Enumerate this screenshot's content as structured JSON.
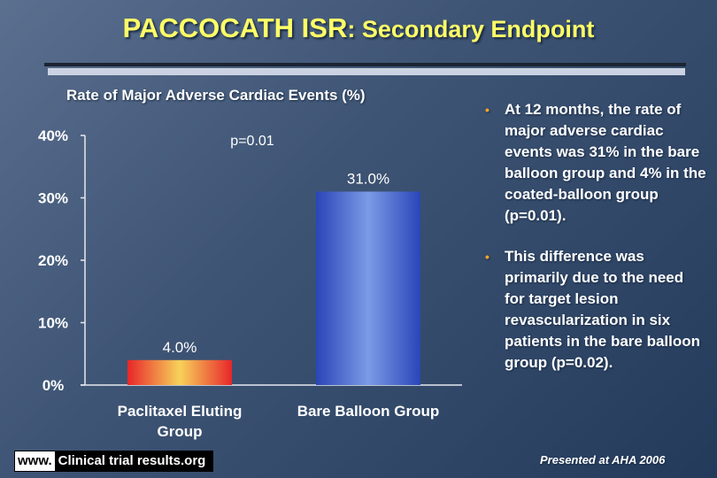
{
  "slide": {
    "title_main": "PACCOCATH ISR",
    "title_sub": ": Secondary Endpoint",
    "chart_title": "Rate of Major Adverse Cardiac Events (%)",
    "bullets": [
      {
        "text": "At 12 months, the rate of major adverse cardiac events was 31% in the bare balloon group and 4% in the coated-balloon group (p=0.01)."
      },
      {
        "text": "This difference was primarily due to the need for target lesion revascularization in six patients in the bare balloon group (p=0.02)."
      }
    ],
    "logo": {
      "www": "www.",
      "site": "Clinical trial results.org"
    },
    "footnote": "Presented at AHA 2006"
  },
  "chart_data": {
    "type": "bar",
    "title": "Rate of Major Adverse Cardiac Events (%)",
    "categories": [
      [
        "Paclitaxel Eluting",
        "Group"
      ],
      [
        "Bare Balloon Group"
      ]
    ],
    "values": [
      4.0,
      31.0
    ],
    "value_labels": [
      "4.0%",
      "31.0%"
    ],
    "annotation": "p=0.01",
    "ylim": [
      0,
      40
    ],
    "yticks": [
      0,
      10,
      20,
      30,
      40
    ],
    "ytick_labels": [
      "0%",
      "10%",
      "20%",
      "30%",
      "40%"
    ],
    "xlabel": "",
    "ylabel": "",
    "grid": false,
    "bar_gradients": [
      [
        "#e8262a",
        "#f7d25a"
      ],
      [
        "#2a45b8",
        "#7a9be6"
      ]
    ]
  }
}
